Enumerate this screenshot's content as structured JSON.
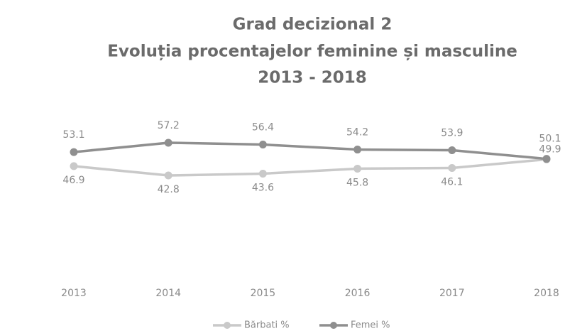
{
  "chart_data": {
    "type": "line",
    "title": [
      "Grad decizional 2",
      "Evoluția procentajelor feminine și masculine",
      "2013 - 2018"
    ],
    "categories": [
      "2013",
      "2014",
      "2015",
      "2016",
      "2017",
      "2018"
    ],
    "series": [
      {
        "name": "Bărbati %",
        "color": "#c9c9c9",
        "values": [
          46.9,
          42.8,
          43.6,
          45.8,
          46.1,
          49.9
        ]
      },
      {
        "name": "Femei %",
        "color": "#8f8f8f",
        "values": [
          53.1,
          57.2,
          56.4,
          54.2,
          53.9,
          50.1
        ]
      }
    ],
    "ylim": [
      0,
      70
    ],
    "legend": "bottom"
  }
}
